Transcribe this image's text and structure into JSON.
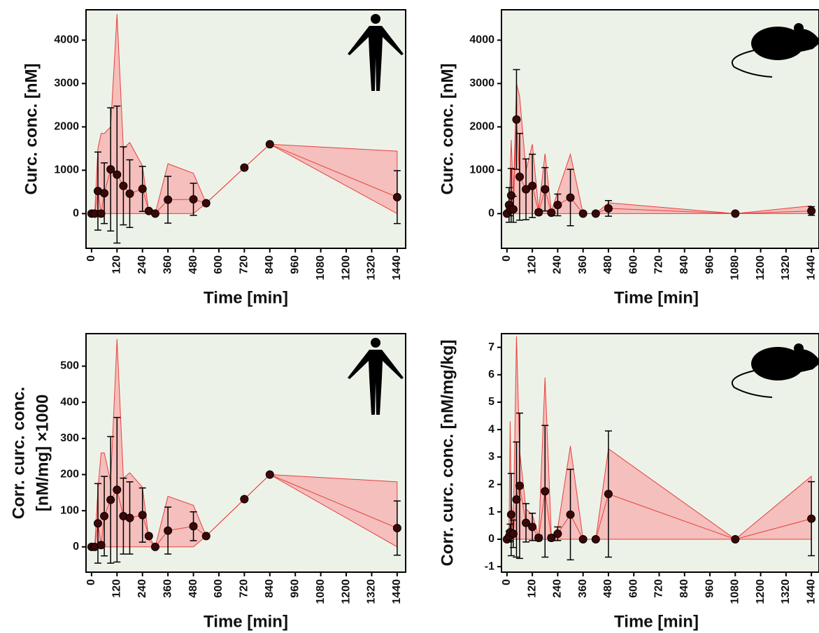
{
  "chart_data": [
    {
      "type": "line",
      "icon": "human",
      "x_label": "Time [min]",
      "y_label": [
        "Curc. conc. [nM]"
      ],
      "x": [
        0,
        15,
        30,
        45,
        60,
        90,
        120,
        150,
        180,
        240,
        270,
        300,
        360,
        480,
        540,
        720,
        840,
        1440
      ],
      "values": [
        0,
        0,
        520,
        0,
        470,
        1020,
        900,
        640,
        460,
        570,
        60,
        0,
        320,
        330,
        240,
        1060,
        1600,
        380
      ],
      "errors": [
        0,
        0,
        900,
        0,
        700,
        1420,
        1580,
        900,
        780,
        520,
        0,
        0,
        540,
        370,
        0,
        0,
        0,
        610
      ],
      "range_upper": [
        0,
        0,
        1500,
        1850,
        1850,
        2000,
        4600,
        1500,
        1640,
        1100,
        30,
        0,
        1150,
        930,
        240,
        1060,
        1600,
        1440
      ],
      "range_lower": [
        0,
        0,
        0,
        0,
        0,
        0,
        0,
        0,
        0,
        0,
        0,
        0,
        0,
        0,
        240,
        1060,
        1600,
        0
      ],
      "point_color": "#3b0808",
      "area_color": "#f4b6b4",
      "area_line_color": "#e8403c",
      "background": "#edf2e9",
      "xlim": [
        -26,
        1480
      ],
      "ylim": [
        -800,
        4700
      ],
      "xticks": [
        0,
        120,
        240,
        360,
        480,
        600,
        720,
        840,
        960,
        1080,
        1200,
        1320,
        1440
      ],
      "yticks": [
        0,
        1000,
        2000,
        3000,
        4000
      ]
    },
    {
      "type": "line",
      "icon": "rat",
      "x_label": "Time [min]",
      "y_label": [
        "Curc. conc. [nM]"
      ],
      "x": [
        0,
        10,
        15,
        20,
        30,
        45,
        60,
        90,
        120,
        150,
        180,
        210,
        240,
        300,
        360,
        420,
        480,
        1080,
        1440
      ],
      "values": [
        0,
        200,
        100,
        420,
        100,
        2170,
        850,
        560,
        640,
        30,
        560,
        20,
        200,
        370,
        0,
        0,
        120,
        0,
        60
      ],
      "errors": [
        0,
        400,
        150,
        620,
        300,
        1150,
        1000,
        700,
        730,
        60,
        500,
        40,
        250,
        650,
        0,
        0,
        180,
        0,
        100
      ],
      "range_upper": [
        0,
        300,
        900,
        1700,
        400,
        3000,
        2700,
        1000,
        1600,
        100,
        1380,
        50,
        500,
        1370,
        0,
        0,
        250,
        0,
        180
      ],
      "range_lower": [
        0,
        0,
        0,
        0,
        0,
        0,
        0,
        0,
        0,
        0,
        0,
        0,
        0,
        0,
        0,
        0,
        0,
        0,
        0
      ],
      "point_color": "#3b0808",
      "area_color": "#f4b6b4",
      "area_line_color": "#e8403c",
      "background": "#edf2e9",
      "xlim": [
        -26,
        1476
      ],
      "ylim": [
        -800,
        4700
      ],
      "xticks": [
        0,
        120,
        240,
        360,
        480,
        600,
        720,
        840,
        960,
        1080,
        1200,
        1320,
        1440
      ],
      "yticks": [
        0,
        1000,
        2000,
        3000,
        4000
      ]
    },
    {
      "type": "line",
      "icon": "human",
      "x_label": "Time [min]",
      "y_label": [
        "Corr. curc. conc.",
        "[nM/mg] ×1000"
      ],
      "x": [
        0,
        15,
        30,
        45,
        60,
        90,
        120,
        150,
        180,
        240,
        270,
        300,
        360,
        480,
        540,
        720,
        840,
        1440
      ],
      "values": [
        0,
        0,
        65,
        5,
        85,
        130,
        158,
        85,
        80,
        88,
        30,
        0,
        45,
        57,
        30,
        132,
        200,
        52
      ],
      "errors": [
        0,
        0,
        110,
        0,
        110,
        175,
        200,
        105,
        100,
        75,
        0,
        0,
        65,
        40,
        0,
        0,
        0,
        75
      ],
      "range_upper": [
        0,
        0,
        160,
        260,
        260,
        180,
        575,
        190,
        205,
        165,
        20,
        0,
        140,
        115,
        30,
        132,
        200,
        180
      ],
      "range_lower": [
        0,
        0,
        0,
        0,
        0,
        0,
        0,
        0,
        0,
        0,
        0,
        0,
        0,
        0,
        30,
        132,
        200,
        0
      ],
      "point_color": "#3b0808",
      "area_color": "#f4b6b4",
      "area_line_color": "#e8403c",
      "background": "#edf2e9",
      "xlim": [
        -26,
        1480
      ],
      "ylim": [
        -70,
        590
      ],
      "xticks": [
        0,
        120,
        240,
        360,
        480,
        600,
        720,
        840,
        960,
        1080,
        1200,
        1320,
        1440
      ],
      "yticks": [
        0,
        100,
        200,
        300,
        400,
        500
      ]
    },
    {
      "type": "line",
      "icon": "rat",
      "x_label": "Time [min]",
      "y_label": [
        "Corr. curc. conc. [nM/mg/kg]"
      ],
      "x": [
        0,
        10,
        15,
        20,
        30,
        45,
        60,
        90,
        120,
        150,
        180,
        210,
        240,
        300,
        360,
        420,
        480,
        1080,
        1440
      ],
      "values": [
        0,
        0.1,
        0.25,
        0.9,
        0.2,
        1.45,
        1.95,
        0.6,
        0.45,
        0.05,
        1.75,
        0.05,
        0.2,
        0.9,
        0,
        0,
        1.65,
        0,
        0.75
      ],
      "errors": [
        0,
        0.2,
        0.3,
        1.5,
        0.5,
        2.1,
        2.65,
        0.7,
        0.5,
        0.1,
        2.4,
        0.1,
        0.25,
        1.65,
        0,
        0,
        2.3,
        0,
        1.35
      ],
      "range_upper": [
        0,
        0.5,
        4.3,
        1.5,
        0.5,
        7.4,
        3.2,
        1.1,
        0.9,
        0.1,
        5.9,
        0.1,
        0.4,
        3.4,
        0,
        0,
        3.3,
        0,
        2.3
      ],
      "range_lower": [
        0,
        0,
        0,
        0,
        0,
        0,
        0,
        0,
        0,
        0,
        0,
        0,
        0,
        0,
        0,
        0,
        0,
        0,
        0
      ],
      "point_color": "#3b0808",
      "area_color": "#f4b6b4",
      "area_line_color": "#e8403c",
      "background": "#edf2e9",
      "xlim": [
        -26,
        1476
      ],
      "ylim": [
        -1.2,
        7.5
      ],
      "xticks": [
        0,
        120,
        240,
        360,
        480,
        600,
        720,
        840,
        960,
        1080,
        1200,
        1320,
        1440
      ],
      "yticks": [
        -1,
        0,
        1,
        2,
        3,
        4,
        5,
        6,
        7
      ]
    }
  ]
}
